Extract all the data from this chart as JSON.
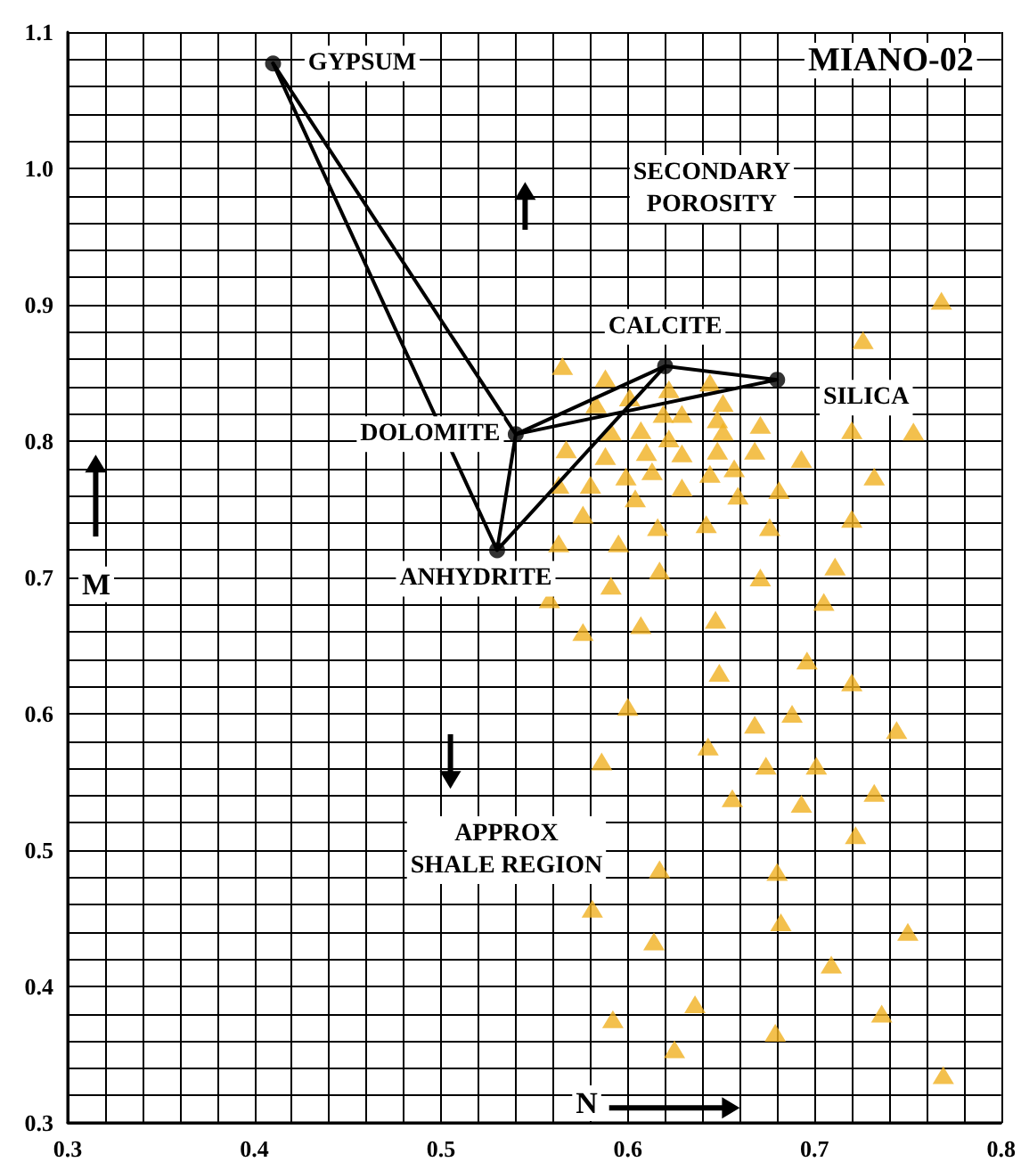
{
  "chart_data": {
    "type": "scatter",
    "title": "MIANO-02",
    "xlabel": "N",
    "ylabel": "M",
    "xlim": [
      0.3,
      0.8
    ],
    "ylim": [
      0.3,
      1.1
    ],
    "xticks": [
      0.3,
      {
        "value": 0.32,
        "label": null
      },
      {
        "value": 0.34,
        "label": null
      },
      {
        "value": 0.36,
        "label": null
      },
      {
        "value": 0.38,
        "label": null
      },
      0.4,
      {
        "value": 0.42,
        "label": null
      },
      {
        "value": 0.44,
        "label": null
      },
      {
        "value": 0.46,
        "label": null
      },
      {
        "value": 0.48,
        "label": null
      },
      0.5,
      {
        "value": 0.52,
        "label": null
      },
      {
        "value": 0.54,
        "label": null
      },
      {
        "value": 0.56,
        "label": null
      },
      {
        "value": 0.58,
        "label": null
      },
      0.6,
      {
        "value": 0.62,
        "label": null
      },
      {
        "value": 0.64,
        "label": null
      },
      {
        "value": 0.66,
        "label": null
      },
      {
        "value": 0.68,
        "label": null
      },
      0.7,
      {
        "value": 0.72,
        "label": null
      },
      {
        "value": 0.74,
        "label": null
      },
      {
        "value": 0.76,
        "label": null
      },
      {
        "value": 0.78,
        "label": null
      },
      0.8
    ],
    "yticks": [
      0.3,
      {
        "value": 0.32,
        "label": null
      },
      {
        "value": 0.34,
        "label": null
      },
      {
        "value": 0.36,
        "label": null
      },
      {
        "value": 0.38,
        "label": null
      },
      0.4,
      {
        "value": 0.42,
        "label": null
      },
      {
        "value": 0.44,
        "label": null
      },
      {
        "value": 0.46,
        "label": null
      },
      {
        "value": 0.48,
        "label": null
      },
      0.5,
      {
        "value": 0.52,
        "label": null
      },
      {
        "value": 0.54,
        "label": null
      },
      {
        "value": 0.56,
        "label": null
      },
      {
        "value": 0.58,
        "label": null
      },
      0.6,
      {
        "value": 0.62,
        "label": null
      },
      {
        "value": 0.64,
        "label": null
      },
      {
        "value": 0.66,
        "label": null
      },
      {
        "value": 0.68,
        "label": null
      },
      0.7,
      {
        "value": 0.72,
        "label": null
      },
      {
        "value": 0.74,
        "label": null
      },
      {
        "value": 0.76,
        "label": null
      },
      {
        "value": 0.78,
        "label": null
      },
      0.8,
      {
        "value": 0.82,
        "label": null
      },
      {
        "value": 0.84,
        "label": null
      },
      {
        "value": 0.86,
        "label": null
      },
      {
        "value": 0.88,
        "label": null
      },
      0.9,
      {
        "value": 0.92,
        "label": null
      },
      {
        "value": 0.94,
        "label": null
      },
      {
        "value": 0.96,
        "label": null
      },
      {
        "value": 0.98,
        "label": null
      },
      {
        "value": 1.0,
        "label": "1.0"
      },
      {
        "value": 1.02,
        "label": null
      },
      {
        "value": 1.04,
        "label": null
      },
      {
        "value": 1.06,
        "label": null
      },
      {
        "value": 1.08,
        "label": null
      },
      1.1
    ],
    "grid": true,
    "series": [
      {
        "type": "line",
        "color": "#000000",
        "marker": "none",
        "line_style": "solid",
        "x": [
          0.41,
          0.53,
          0.54,
          0.68,
          0.62,
          0.53
        ],
        "values": [
          1.077,
          0.72,
          0.805,
          0.845,
          0.855,
          0.72
        ]
      },
      {
        "type": "line",
        "color": "#000000",
        "marker": "none",
        "line_style": "solid",
        "x": [
          0.41,
          0.54,
          0.62
        ],
        "values": [
          1.077,
          0.805,
          0.855
        ]
      },
      {
        "type": "scatter",
        "color": "#000000",
        "marker": "circle",
        "x": [
          0.41,
          0.54,
          0.62,
          0.68,
          0.53
        ],
        "values": [
          1.077,
          0.805,
          0.855,
          0.845,
          0.72
        ]
      },
      {
        "type": "scatter",
        "color": "#f0b020",
        "marker": "triangle",
        "x": [
          0.768,
          0.726,
          0.565,
          0.588,
          0.644,
          0.601,
          0.622,
          0.583,
          0.651,
          0.619,
          0.629,
          0.648,
          0.591,
          0.607,
          0.651,
          0.671,
          0.72,
          0.753,
          0.567,
          0.588,
          0.61,
          0.622,
          0.629,
          0.648,
          0.668,
          0.693,
          0.613,
          0.599,
          0.563,
          0.58,
          0.644,
          0.657,
          0.732,
          0.629,
          0.659,
          0.681,
          0.604,
          0.576,
          0.616,
          0.642,
          0.676,
          0.72,
          0.563,
          0.595,
          0.617,
          0.671,
          0.711,
          0.591,
          0.558,
          0.705,
          0.576,
          0.607,
          0.647,
          0.696,
          0.649,
          0.72,
          0.6,
          0.668,
          0.688,
          0.744,
          0.643,
          0.586,
          0.674,
          0.701,
          0.656,
          0.693,
          0.732,
          0.722,
          0.617,
          0.68,
          0.581,
          0.682,
          0.75,
          0.614,
          0.709,
          0.636,
          0.592,
          0.736,
          0.679,
          0.625,
          0.769
        ],
        "values": [
          0.903,
          0.874,
          0.855,
          0.846,
          0.843,
          0.832,
          0.838,
          0.827,
          0.828,
          0.82,
          0.82,
          0.816,
          0.807,
          0.808,
          0.807,
          0.812,
          0.808,
          0.807,
          0.794,
          0.789,
          0.792,
          0.802,
          0.791,
          0.793,
          0.793,
          0.787,
          0.778,
          0.774,
          0.768,
          0.768,
          0.776,
          0.78,
          0.774,
          0.766,
          0.76,
          0.764,
          0.758,
          0.746,
          0.737,
          0.739,
          0.737,
          0.743,
          0.725,
          0.725,
          0.705,
          0.7,
          0.708,
          0.694,
          0.684,
          0.682,
          0.66,
          0.665,
          0.669,
          0.639,
          0.63,
          0.623,
          0.605,
          0.592,
          0.6,
          0.588,
          0.576,
          0.565,
          0.562,
          0.562,
          0.538,
          0.534,
          0.542,
          0.511,
          0.486,
          0.484,
          0.457,
          0.447,
          0.44,
          0.433,
          0.416,
          0.387,
          0.376,
          0.38,
          0.366,
          0.354,
          0.335
        ]
      }
    ],
    "annotations": [
      {
        "text": "GYPSUM",
        "x": 0.41,
        "y": 1.077
      },
      {
        "text": "DOLOMITE",
        "x": 0.54,
        "y": 0.805
      },
      {
        "text": "CALCITE",
        "x": 0.62,
        "y": 0.855
      },
      {
        "text": "SILICA",
        "x": 0.68,
        "y": 0.845
      },
      {
        "text": "ANHYDRITE",
        "x": 0.53,
        "y": 0.72
      },
      "SECONDARY\nPOROSITY",
      "APPROX\nSHALE REGION"
    ]
  }
}
